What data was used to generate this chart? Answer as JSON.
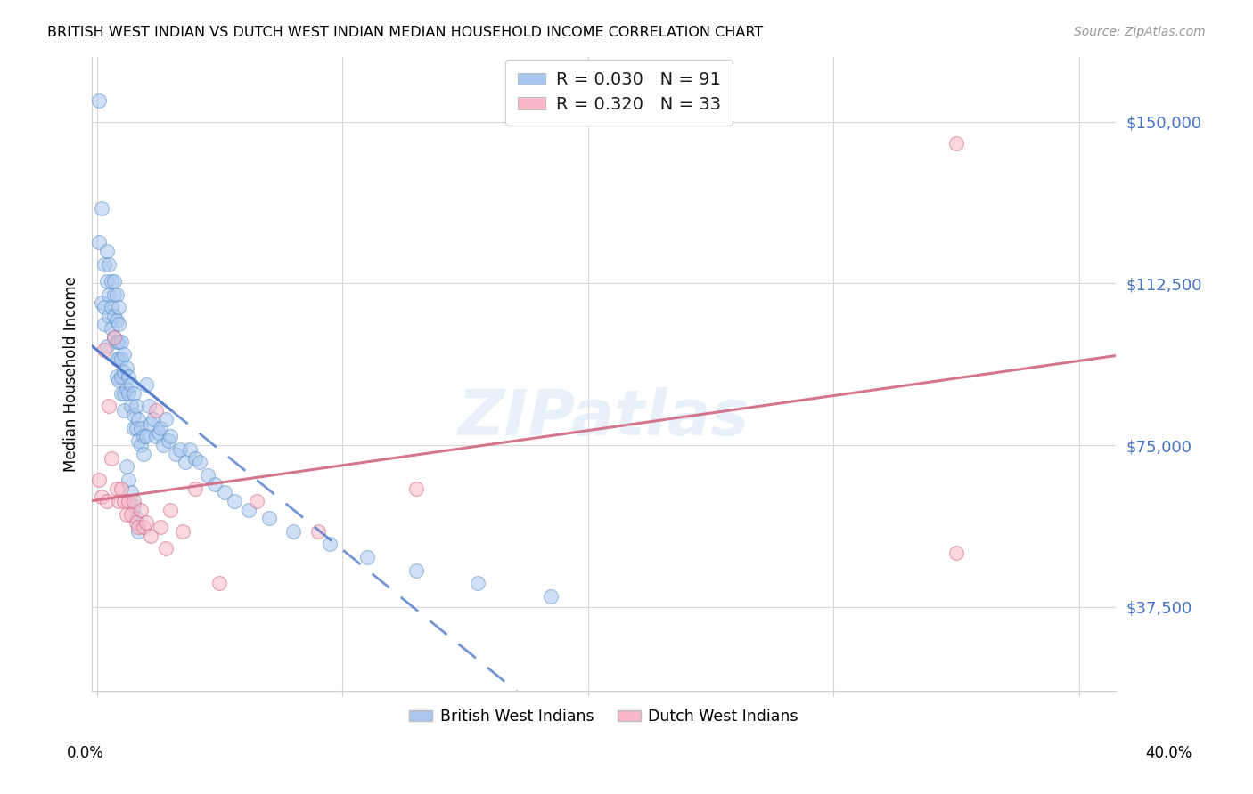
{
  "title": "BRITISH WEST INDIAN VS DUTCH WEST INDIAN MEDIAN HOUSEHOLD INCOME CORRELATION CHART",
  "source": "Source: ZipAtlas.com",
  "ylabel": "Median Household Income",
  "ytick_labels": [
    "$37,500",
    "$75,000",
    "$112,500",
    "$150,000"
  ],
  "ytick_values": [
    37500,
    75000,
    112500,
    150000
  ],
  "ymin": 18000,
  "ymax": 165000,
  "xmin": -0.002,
  "xmax": 0.415,
  "watermark": "ZIPatlas",
  "blue_color": "#a8c8f0",
  "blue_edge_color": "#5b8ec4",
  "pink_color": "#f8b8c8",
  "pink_edge_color": "#d06080",
  "blue_line_color": "#4472c4",
  "pink_line_color": "#d06880",
  "blue_x": [
    0.001,
    0.001,
    0.002,
    0.002,
    0.003,
    0.003,
    0.003,
    0.004,
    0.004,
    0.004,
    0.005,
    0.005,
    0.005,
    0.006,
    0.006,
    0.006,
    0.007,
    0.007,
    0.007,
    0.007,
    0.008,
    0.008,
    0.008,
    0.008,
    0.008,
    0.009,
    0.009,
    0.009,
    0.009,
    0.009,
    0.01,
    0.01,
    0.01,
    0.01,
    0.011,
    0.011,
    0.011,
    0.011,
    0.012,
    0.012,
    0.013,
    0.013,
    0.014,
    0.014,
    0.015,
    0.015,
    0.015,
    0.016,
    0.016,
    0.017,
    0.017,
    0.018,
    0.018,
    0.019,
    0.019,
    0.02,
    0.02,
    0.021,
    0.022,
    0.023,
    0.024,
    0.025,
    0.026,
    0.027,
    0.028,
    0.029,
    0.03,
    0.032,
    0.034,
    0.036,
    0.038,
    0.04,
    0.042,
    0.045,
    0.048,
    0.052,
    0.056,
    0.062,
    0.07,
    0.08,
    0.095,
    0.11,
    0.13,
    0.155,
    0.185,
    0.012,
    0.013,
    0.014,
    0.015,
    0.016,
    0.017
  ],
  "blue_y": [
    155000,
    122000,
    130000,
    108000,
    117000,
    107000,
    103000,
    120000,
    113000,
    98000,
    117000,
    110000,
    105000,
    113000,
    107000,
    102000,
    113000,
    110000,
    105000,
    100000,
    110000,
    104000,
    99000,
    95000,
    91000,
    107000,
    103000,
    99000,
    95000,
    90000,
    99000,
    95000,
    91000,
    87000,
    96000,
    92000,
    87000,
    83000,
    93000,
    88000,
    91000,
    87000,
    89000,
    84000,
    87000,
    82000,
    79000,
    84000,
    79000,
    81000,
    76000,
    79000,
    75000,
    77000,
    73000,
    89000,
    77000,
    84000,
    80000,
    81000,
    77000,
    78000,
    79000,
    75000,
    81000,
    76000,
    77000,
    73000,
    74000,
    71000,
    74000,
    72000,
    71000,
    68000,
    66000,
    64000,
    62000,
    60000,
    58000,
    55000,
    52000,
    49000,
    46000,
    43000,
    40000,
    70000,
    67000,
    64000,
    61000,
    58000,
    55000
  ],
  "pink_x": [
    0.001,
    0.002,
    0.003,
    0.004,
    0.005,
    0.006,
    0.007,
    0.008,
    0.009,
    0.01,
    0.011,
    0.012,
    0.013,
    0.014,
    0.015,
    0.016,
    0.017,
    0.018,
    0.019,
    0.02,
    0.022,
    0.024,
    0.026,
    0.028,
    0.03,
    0.035,
    0.04,
    0.05,
    0.065,
    0.09,
    0.13,
    0.35,
    0.35
  ],
  "pink_y": [
    67000,
    63000,
    97000,
    62000,
    84000,
    72000,
    100000,
    65000,
    62000,
    65000,
    62000,
    59000,
    62000,
    59000,
    62000,
    57000,
    56000,
    60000,
    56000,
    57000,
    54000,
    83000,
    56000,
    51000,
    60000,
    55000,
    65000,
    43000,
    62000,
    55000,
    65000,
    145000,
    50000
  ]
}
